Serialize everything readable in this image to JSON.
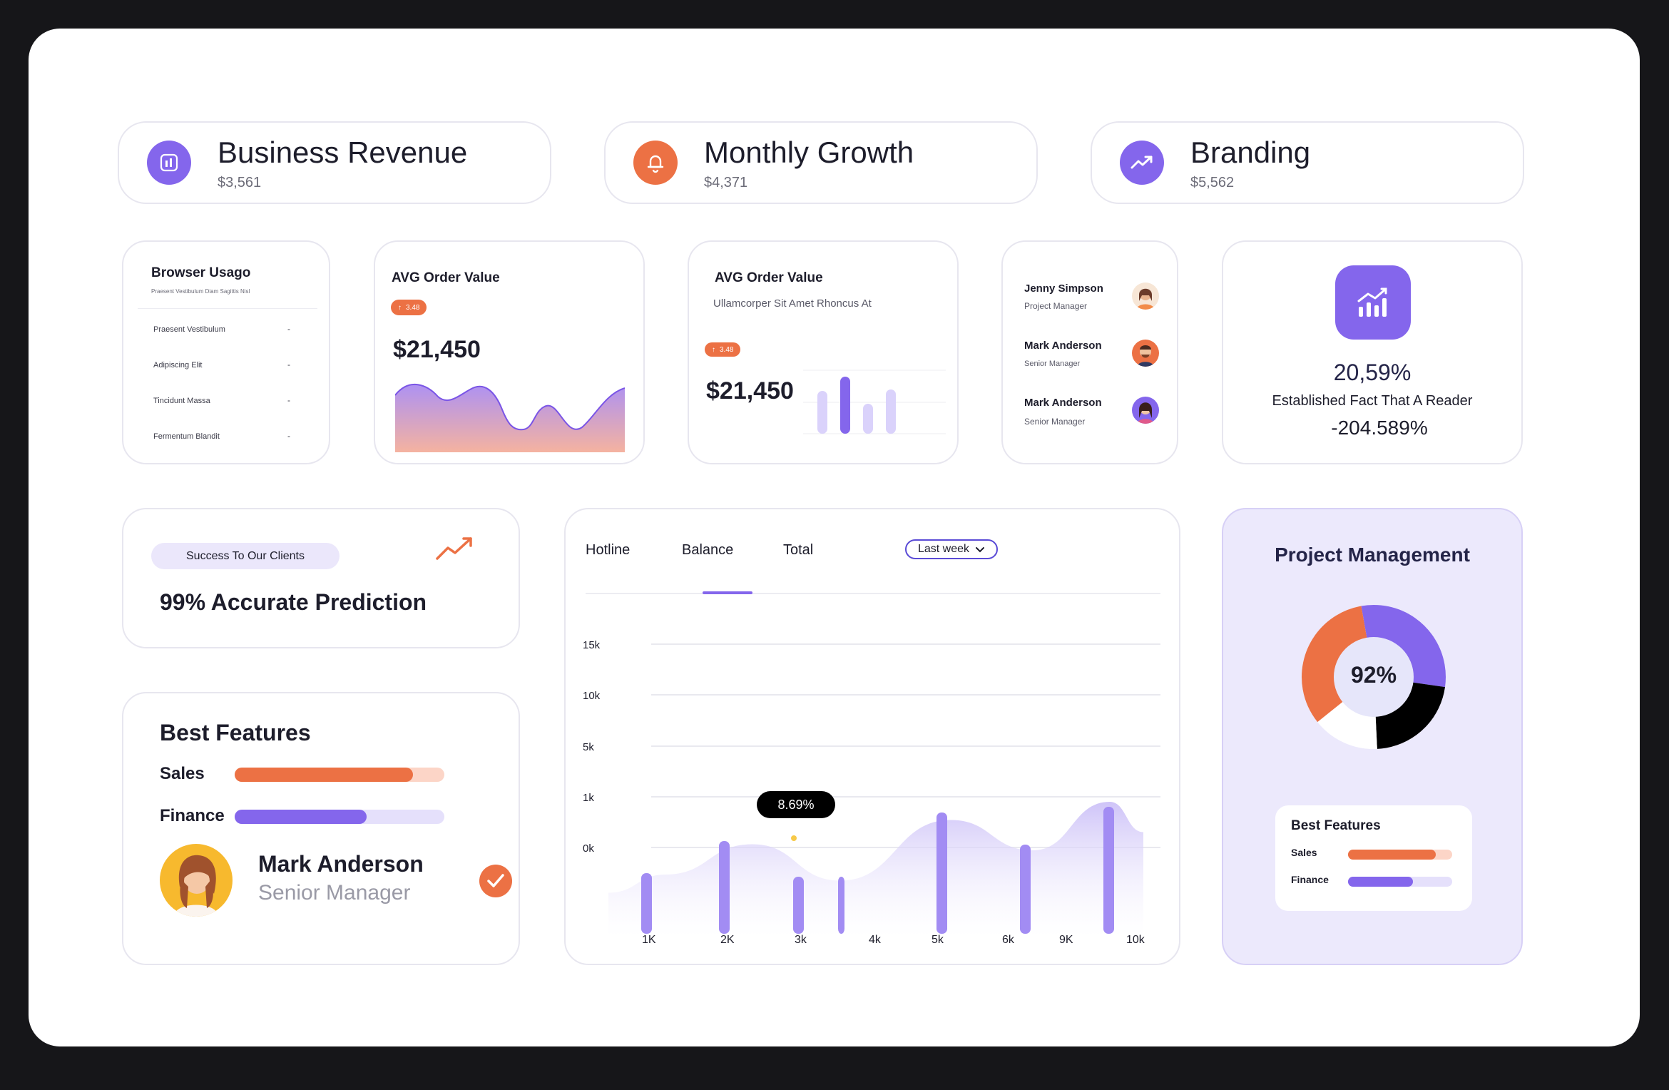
{
  "stats": [
    {
      "title": "Business Revenue",
      "value": "$3,561",
      "icon": "bar-chart-icon",
      "color": "#8466ec"
    },
    {
      "title": "Monthly Growth",
      "value": "$4,371",
      "icon": "bell-icon",
      "color": "#ec7144"
    },
    {
      "title": "Branding",
      "value": "$5,562",
      "icon": "trend-up-icon",
      "color": "#8466ec"
    }
  ],
  "browser": {
    "title": "Browser Usago",
    "subtitle": "Praesent Vestibulum Diam Sagittis Nisl",
    "items": [
      {
        "label": "Praesent Vestibulum",
        "value": "-"
      },
      {
        "label": "Adipiscing Elit",
        "value": "-"
      },
      {
        "label": "Tincidunt Massa",
        "value": "-"
      },
      {
        "label": "Fermentum Blandit",
        "value": "-"
      }
    ]
  },
  "avg1": {
    "title": "AVG Order Value",
    "badge": "3.48",
    "value": "$21,450"
  },
  "avg2": {
    "title": "AVG Order Value",
    "subtitle": "Ullamcorper Sit Amet Rhoncus At",
    "badge": "3.48",
    "value": "$21,450"
  },
  "people": [
    {
      "name": "Jenny Simpson",
      "role": "Project Manager"
    },
    {
      "name": "Mark Anderson",
      "role": "Senior Manager"
    },
    {
      "name": "Mark Anderson",
      "role": "Senior Manager"
    }
  ],
  "fact": {
    "percent": "20,59%",
    "text": "Established Fact That A Reader",
    "delta": "-204.589%"
  },
  "prediction": {
    "pill": "Success To Our Clients",
    "title": "99% Accurate Prediction"
  },
  "features": {
    "title": "Best Features",
    "items": [
      {
        "label": "Sales",
        "pct": 85
      },
      {
        "label": "Finance",
        "pct": 63
      }
    ]
  },
  "profile": {
    "name": "Mark Anderson",
    "role": "Senior Manager"
  },
  "balance": {
    "tabs": [
      "Hotline",
      "Balance",
      "Total"
    ],
    "dropdown": "Last week",
    "tooltip": "8.69%"
  },
  "chart_data": {
    "type": "bar",
    "categories": [
      "1K",
      "2K",
      "3k",
      "4k",
      "5k",
      "6k",
      "9K",
      "10k"
    ],
    "ytick_labels": [
      "15k",
      "10k",
      "5k",
      "1k",
      "0k"
    ],
    "values": [
      0.3,
      1.3,
      0.25,
      0.85,
      1.65,
      1.25,
      2.0,
      1.9
    ],
    "area": [
      0.5,
      0.8,
      1.3,
      0.7,
      1.7,
      1.2,
      2.0,
      1.5
    ],
    "highlight": {
      "category": "3k",
      "label": "8.69%"
    }
  },
  "pm": {
    "title": "Project Management",
    "percent": "92%",
    "segments": [
      {
        "name": "purple",
        "share": 0.3,
        "color": "#8466ec"
      },
      {
        "name": "black",
        "share": 0.22,
        "color": "#000000"
      },
      {
        "name": "white",
        "share": 0.15,
        "color": "#ffffff"
      },
      {
        "name": "orange",
        "share": 0.33,
        "color": "#ec7144"
      }
    ],
    "features_title": "Best Features",
    "features": [
      {
        "label": "Sales",
        "pct": 84
      },
      {
        "label": "Finance",
        "pct": 62
      }
    ]
  }
}
